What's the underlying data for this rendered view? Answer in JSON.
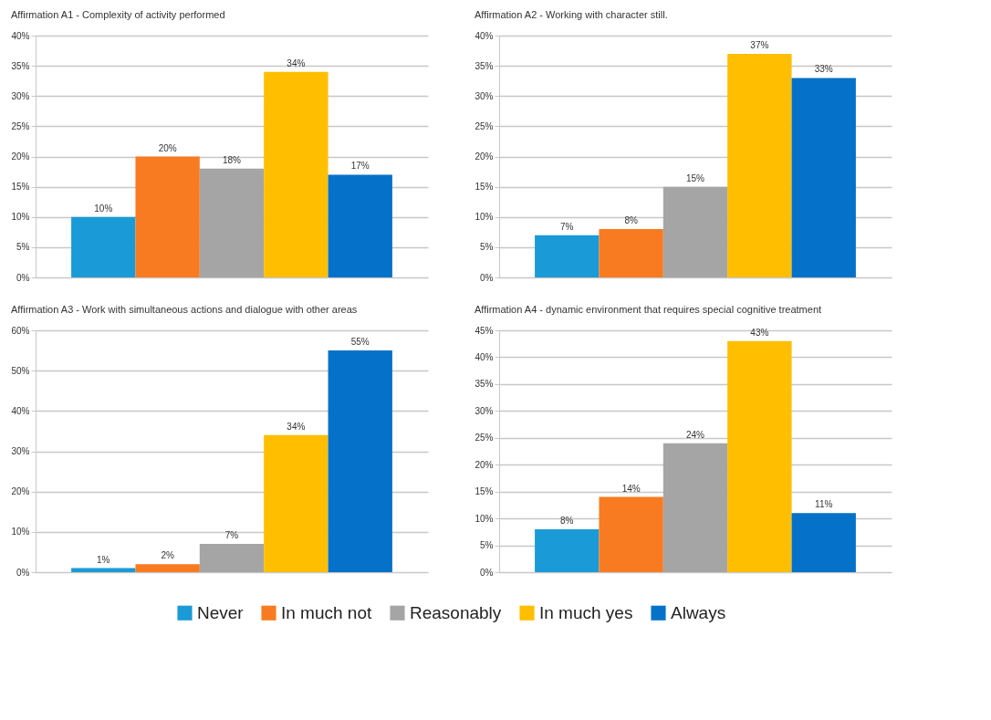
{
  "chart_data": [
    {
      "type": "bar",
      "title": "Affirmation A1 - Complexity of activity performed",
      "categories": [
        null
      ],
      "series": [
        {
          "name": "Never",
          "color": "#1a9ad6",
          "values": [
            10
          ],
          "value_labels": [
            "10%"
          ]
        },
        {
          "name": "In much not",
          "color": "#f97b21",
          "values": [
            20
          ],
          "value_labels": [
            "20%"
          ]
        },
        {
          "name": "Reasonably",
          "color": "#a5a5a5",
          "values": [
            18
          ],
          "value_labels": [
            "18%"
          ]
        },
        {
          "name": "In much yes",
          "color": "#ffbf00",
          "values": [
            34
          ],
          "value_labels": [
            "34%"
          ]
        },
        {
          "name": "Always",
          "color": "#0571c9",
          "values": [
            17
          ],
          "value_labels": [
            "17%"
          ]
        }
      ],
      "ylim": [
        0,
        40
      ],
      "yticks": [
        {
          "value": 0,
          "label": "0%"
        },
        {
          "value": 5,
          "label": "5%"
        },
        {
          "value": 10,
          "label": "10%"
        },
        {
          "value": 15,
          "label": "15%"
        },
        {
          "value": 20,
          "label": "20%"
        },
        {
          "value": 25,
          "label": "25%"
        },
        {
          "value": 30,
          "label": "30%"
        },
        {
          "value": 35,
          "label": "35%"
        },
        {
          "value": 40,
          "label": "40%"
        }
      ],
      "grid": "y",
      "legend": "bottom"
    },
    {
      "type": "bar",
      "title": "Affirmation A2 - Working with character still.",
      "categories": [
        null
      ],
      "series": [
        {
          "name": "Never",
          "color": "#1a9ad6",
          "values": [
            7
          ],
          "value_labels": [
            "7%"
          ]
        },
        {
          "name": "In much not",
          "color": "#f97b21",
          "values": [
            8
          ],
          "value_labels": [
            "8%"
          ]
        },
        {
          "name": "Reasonably",
          "color": "#a5a5a5",
          "values": [
            15
          ],
          "value_labels": [
            "15%"
          ]
        },
        {
          "name": "In much yes",
          "color": "#ffbf00",
          "values": [
            37
          ],
          "value_labels": [
            "37%"
          ]
        },
        {
          "name": "Always",
          "color": "#0571c9",
          "values": [
            33
          ],
          "value_labels": [
            "33%"
          ]
        }
      ],
      "ylim": [
        0,
        40
      ],
      "yticks": [
        {
          "value": 0,
          "label": "0%"
        },
        {
          "value": 5,
          "label": "5%"
        },
        {
          "value": 10,
          "label": "10%"
        },
        {
          "value": 15,
          "label": "15%"
        },
        {
          "value": 20,
          "label": "20%"
        },
        {
          "value": 25,
          "label": "25%"
        },
        {
          "value": 30,
          "label": "30%"
        },
        {
          "value": 35,
          "label": "35%"
        },
        {
          "value": 40,
          "label": "40%"
        }
      ],
      "grid": "y",
      "legend": "bottom"
    },
    {
      "type": "bar",
      "title": "Affirmation  A3 - Work with simultaneous actions and dialogue with other areas",
      "categories": [
        null
      ],
      "series": [
        {
          "name": "Never",
          "color": "#1a9ad6",
          "values": [
            1
          ],
          "value_labels": [
            "1%"
          ]
        },
        {
          "name": "In much not",
          "color": "#f97b21",
          "values": [
            2
          ],
          "value_labels": [
            "2%"
          ]
        },
        {
          "name": "Reasonably",
          "color": "#a5a5a5",
          "values": [
            7
          ],
          "value_labels": [
            "7%"
          ]
        },
        {
          "name": "In much yes",
          "color": "#ffbf00",
          "values": [
            34
          ],
          "value_labels": [
            "34%"
          ]
        },
        {
          "name": "Always",
          "color": "#0571c9",
          "values": [
            55
          ],
          "value_labels": [
            "55%"
          ]
        }
      ],
      "ylim": [
        0,
        60
      ],
      "yticks": [
        {
          "value": 0,
          "label": "0%"
        },
        {
          "value": 10,
          "label": "10%"
        },
        {
          "value": 20,
          "label": "20%"
        },
        {
          "value": 30,
          "label": "30%"
        },
        {
          "value": 40,
          "label": "40%"
        },
        {
          "value": 50,
          "label": "50%"
        },
        {
          "value": 60,
          "label": "60%"
        }
      ],
      "grid": "y",
      "legend": "bottom"
    },
    {
      "type": "bar",
      "title": "Affirmation  A4 - dynamic environment that requires special cognitive treatment",
      "categories": [
        null
      ],
      "series": [
        {
          "name": "Never",
          "color": "#1a9ad6",
          "values": [
            8
          ],
          "value_labels": [
            "8%"
          ]
        },
        {
          "name": "In much not",
          "color": "#f97b21",
          "values": [
            14
          ],
          "value_labels": [
            "14%"
          ]
        },
        {
          "name": "Reasonably",
          "color": "#a5a5a5",
          "values": [
            24
          ],
          "value_labels": [
            "24%"
          ]
        },
        {
          "name": "In much yes",
          "color": "#ffbf00",
          "values": [
            43
          ],
          "value_labels": [
            "43%"
          ]
        },
        {
          "name": "Always",
          "color": "#0571c9",
          "values": [
            11
          ],
          "value_labels": [
            "11%"
          ]
        }
      ],
      "ylim": [
        0,
        45
      ],
      "yticks": [
        {
          "value": 0,
          "label": "0%"
        },
        {
          "value": 5,
          "label": "5%"
        },
        {
          "value": 10,
          "label": "10%"
        },
        {
          "value": 15,
          "label": "15%"
        },
        {
          "value": 20,
          "label": "20%"
        },
        {
          "value": 25,
          "label": "25%"
        },
        {
          "value": 30,
          "label": "30%"
        },
        {
          "value": 35,
          "label": "35%"
        },
        {
          "value": 40,
          "label": "40%"
        },
        {
          "value": 45,
          "label": "45%"
        }
      ],
      "grid": "y",
      "legend": "bottom"
    }
  ]
}
